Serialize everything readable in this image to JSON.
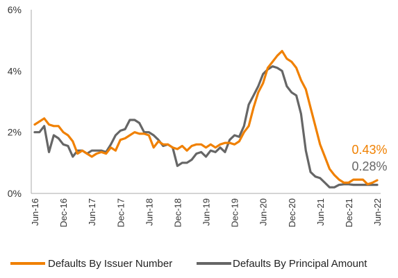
{
  "chart_data": {
    "type": "line",
    "title": "",
    "xlabel": "",
    "ylabel": "",
    "ylim": [
      0,
      6
    ],
    "y_ticks": [
      0,
      2,
      4,
      6
    ],
    "y_tick_labels": [
      "0%",
      "2%",
      "4%",
      "6%"
    ],
    "x_tick_labels": [
      "Jun-16",
      "Dec-16",
      "Jun-17",
      "Dec-17",
      "Jun-18",
      "Dec-18",
      "Jun-19",
      "Dec-19",
      "Jun-20",
      "Dec-20",
      "Jun-21",
      "Dec-21",
      "Jun-22"
    ],
    "grid": false,
    "legend_position": "bottom",
    "series": [
      {
        "name": "Defaults By Issuer Number",
        "color": "#F08000",
        "end_label": "0.43%",
        "points": [
          [
            "2016-06",
            2.25
          ],
          [
            "2016-08",
            2.45
          ],
          [
            "2016-09",
            2.25
          ],
          [
            "2016-10",
            2.2
          ],
          [
            "2016-11",
            2.2
          ],
          [
            "2016-12",
            2.0
          ],
          [
            "2017-01",
            1.9
          ],
          [
            "2017-02",
            1.7
          ],
          [
            "2017-03",
            1.3
          ],
          [
            "2017-04",
            1.4
          ],
          [
            "2017-05",
            1.3
          ],
          [
            "2017-06",
            1.2
          ],
          [
            "2017-07",
            1.3
          ],
          [
            "2017-08",
            1.35
          ],
          [
            "2017-09",
            1.3
          ],
          [
            "2017-10",
            1.5
          ],
          [
            "2017-11",
            1.4
          ],
          [
            "2017-12",
            1.75
          ],
          [
            "2018-01",
            1.8
          ],
          [
            "2018-02",
            1.9
          ],
          [
            "2018-03",
            2.0
          ],
          [
            "2018-04",
            1.95
          ],
          [
            "2018-05",
            1.95
          ],
          [
            "2018-06",
            1.9
          ],
          [
            "2018-07",
            1.5
          ],
          [
            "2018-08",
            1.7
          ],
          [
            "2018-09",
            1.6
          ],
          [
            "2018-10",
            1.6
          ],
          [
            "2018-11",
            1.5
          ],
          [
            "2018-12",
            1.45
          ],
          [
            "2019-01",
            1.55
          ],
          [
            "2019-02",
            1.4
          ],
          [
            "2019-03",
            1.55
          ],
          [
            "2019-04",
            1.6
          ],
          [
            "2019-05",
            1.6
          ],
          [
            "2019-06",
            1.5
          ],
          [
            "2019-07",
            1.6
          ],
          [
            "2019-08",
            1.5
          ],
          [
            "2019-09",
            1.6
          ],
          [
            "2019-10",
            1.65
          ],
          [
            "2019-11",
            1.65
          ],
          [
            "2019-12",
            1.6
          ],
          [
            "2020-01",
            1.7
          ],
          [
            "2020-02",
            2.0
          ],
          [
            "2020-03",
            2.2
          ],
          [
            "2020-04",
            2.8
          ],
          [
            "2020-05",
            3.3
          ],
          [
            "2020-06",
            3.6
          ],
          [
            "2020-07",
            4.1
          ],
          [
            "2020-08",
            4.3
          ],
          [
            "2020-09",
            4.5
          ],
          [
            "2020-10",
            4.65
          ],
          [
            "2020-11",
            4.4
          ],
          [
            "2020-12",
            4.3
          ],
          [
            "2021-01",
            4.1
          ],
          [
            "2021-02",
            3.7
          ],
          [
            "2021-03",
            3.4
          ],
          [
            "2021-04",
            2.8
          ],
          [
            "2021-05",
            2.2
          ],
          [
            "2021-06",
            1.6
          ],
          [
            "2021-07",
            1.2
          ],
          [
            "2021-08",
            0.8
          ],
          [
            "2021-09",
            0.6
          ],
          [
            "2021-10",
            0.45
          ],
          [
            "2021-11",
            0.35
          ],
          [
            "2021-12",
            0.35
          ],
          [
            "2022-01",
            0.45
          ],
          [
            "2022-02",
            0.45
          ],
          [
            "2022-03",
            0.45
          ],
          [
            "2022-04",
            0.3
          ],
          [
            "2022-05",
            0.35
          ],
          [
            "2022-06",
            0.43
          ]
        ]
      },
      {
        "name": "Defaults By Principal Amount",
        "color": "#666666",
        "end_label": "0.28%",
        "points": [
          [
            "2016-06",
            2.0
          ],
          [
            "2016-07",
            2.0
          ],
          [
            "2016-08",
            2.2
          ],
          [
            "2016-09",
            1.35
          ],
          [
            "2016-10",
            1.9
          ],
          [
            "2016-11",
            1.8
          ],
          [
            "2016-12",
            1.6
          ],
          [
            "2017-01",
            1.55
          ],
          [
            "2017-02",
            1.2
          ],
          [
            "2017-03",
            1.4
          ],
          [
            "2017-04",
            1.4
          ],
          [
            "2017-05",
            1.3
          ],
          [
            "2017-06",
            1.4
          ],
          [
            "2017-07",
            1.4
          ],
          [
            "2017-08",
            1.4
          ],
          [
            "2017-09",
            1.35
          ],
          [
            "2017-10",
            1.6
          ],
          [
            "2017-11",
            1.9
          ],
          [
            "2017-12",
            2.05
          ],
          [
            "2018-01",
            2.1
          ],
          [
            "2018-02",
            2.4
          ],
          [
            "2018-03",
            2.4
          ],
          [
            "2018-04",
            2.3
          ],
          [
            "2018-05",
            2.0
          ],
          [
            "2018-06",
            2.0
          ],
          [
            "2018-07",
            1.9
          ],
          [
            "2018-08",
            1.75
          ],
          [
            "2018-09",
            1.55
          ],
          [
            "2018-10",
            1.6
          ],
          [
            "2018-11",
            1.5
          ],
          [
            "2018-12",
            0.9
          ],
          [
            "2019-01",
            1.0
          ],
          [
            "2019-02",
            1.0
          ],
          [
            "2019-03",
            1.1
          ],
          [
            "2019-04",
            1.3
          ],
          [
            "2019-05",
            1.35
          ],
          [
            "2019-06",
            1.2
          ],
          [
            "2019-07",
            1.4
          ],
          [
            "2019-08",
            1.35
          ],
          [
            "2019-09",
            1.5
          ],
          [
            "2019-10",
            1.35
          ],
          [
            "2019-11",
            1.75
          ],
          [
            "2019-12",
            1.9
          ],
          [
            "2020-01",
            1.85
          ],
          [
            "2020-02",
            2.2
          ],
          [
            "2020-03",
            2.9
          ],
          [
            "2020-04",
            3.2
          ],
          [
            "2020-05",
            3.5
          ],
          [
            "2020-06",
            3.9
          ],
          [
            "2020-07",
            4.05
          ],
          [
            "2020-08",
            4.15
          ],
          [
            "2020-09",
            4.1
          ],
          [
            "2020-10",
            4.0
          ],
          [
            "2020-11",
            3.5
          ],
          [
            "2020-12",
            3.3
          ],
          [
            "2021-01",
            3.2
          ],
          [
            "2021-02",
            2.6
          ],
          [
            "2021-03",
            1.4
          ],
          [
            "2021-04",
            0.7
          ],
          [
            "2021-05",
            0.55
          ],
          [
            "2021-06",
            0.5
          ],
          [
            "2021-07",
            0.35
          ],
          [
            "2021-08",
            0.2
          ],
          [
            "2021-09",
            0.2
          ],
          [
            "2021-10",
            0.28
          ],
          [
            "2021-11",
            0.3
          ],
          [
            "2021-12",
            0.3
          ],
          [
            "2022-01",
            0.28
          ],
          [
            "2022-02",
            0.28
          ],
          [
            "2022-03",
            0.28
          ],
          [
            "2022-04",
            0.28
          ],
          [
            "2022-05",
            0.28
          ],
          [
            "2022-06",
            0.28
          ]
        ]
      }
    ]
  }
}
